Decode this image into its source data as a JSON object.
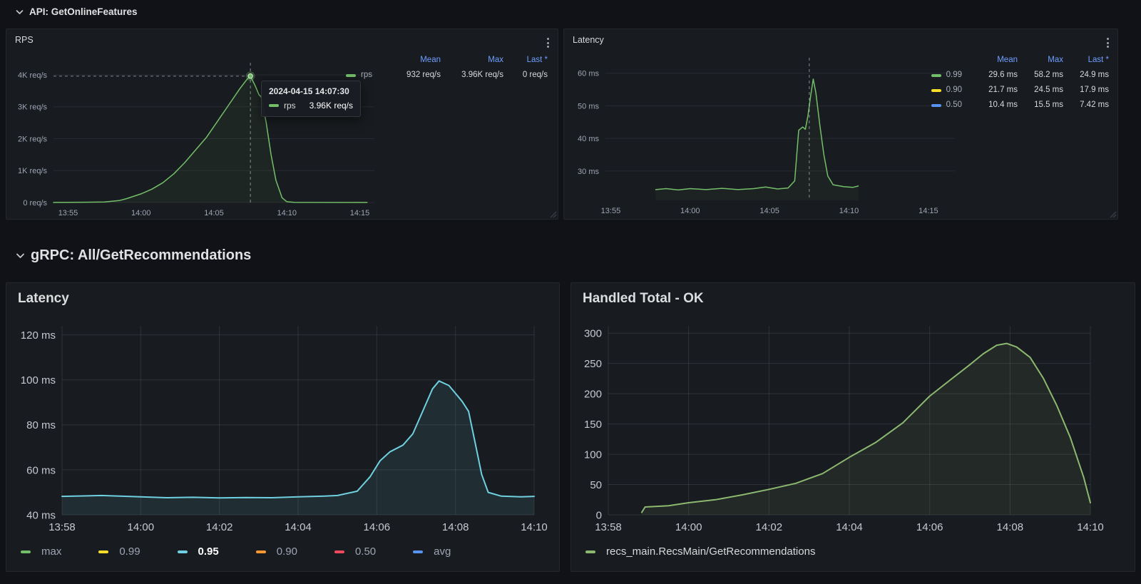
{
  "colors": {
    "page_bg": "#111217",
    "panel_bg": "#181B1F",
    "panel_border": "#25272D",
    "legend_header_blue": "#6E9FFF",
    "green": "#73BF69",
    "yellow": "#FADE2A",
    "blue": "#5794F2",
    "light_blue": "#6ED0E0",
    "orange": "#FF9830",
    "red": "#F2495C",
    "olive_green": "#8CB870"
  },
  "sections": [
    {
      "title": "API: GetOnlineFeatures"
    },
    {
      "title": "gRPC: All/GetRecommendations"
    }
  ],
  "panels": {
    "rps": {
      "title": "RPS",
      "legend_headers": [
        "Mean",
        "Max",
        "Last *"
      ],
      "legend_rows": [
        {
          "name": "rps",
          "mean": "932 req/s",
          "max": "3.96K req/s",
          "last": "0 req/s"
        }
      ],
      "tooltip": {
        "timestamp": "2024-04-15 14:07:30",
        "series": "rps",
        "value": "3.96K req/s"
      }
    },
    "latency_api": {
      "title": "Latency",
      "legend_headers": [
        "Mean",
        "Max",
        "Last *"
      ],
      "legend_rows": [
        {
          "name": "0.99",
          "mean": "29.6 ms",
          "max": "58.2 ms",
          "last": "24.9 ms"
        },
        {
          "name": "0.90",
          "mean": "21.7 ms",
          "max": "24.5 ms",
          "last": "17.9 ms"
        },
        {
          "name": "0.50",
          "mean": "10.4 ms",
          "max": "15.5 ms",
          "last": "7.42 ms"
        }
      ]
    },
    "latency_grpc": {
      "title": "Latency",
      "legend_items": [
        {
          "label": "max",
          "color": "#73BF69",
          "selected": false
        },
        {
          "label": "0.99",
          "color": "#FADE2A",
          "selected": false
        },
        {
          "label": "0.95",
          "color": "#6ED0E0",
          "selected": true
        },
        {
          "label": "0.90",
          "color": "#FF9830",
          "selected": false
        },
        {
          "label": "0.50",
          "color": "#F2495C",
          "selected": false
        },
        {
          "label": "avg",
          "color": "#5794F2",
          "selected": false
        }
      ]
    },
    "handled_total": {
      "title": "Handled Total - OK",
      "legend_items": [
        {
          "label": "recs_main.RecsMain/GetRecommendations",
          "color": "#8CB870",
          "selected": false
        }
      ]
    }
  },
  "chart_data": [
    {
      "type": "line",
      "title": "RPS",
      "x_domain": [
        "13:54:00",
        "14:16:00"
      ],
      "x_ticks": [
        "13:55",
        "14:00",
        "14:05",
        "14:10",
        "14:15"
      ],
      "y_domain": [
        0,
        4200
      ],
      "y_ticks": [
        {
          "v": 0,
          "label": "0 req/s"
        },
        {
          "v": 1000,
          "label": "1K req/s"
        },
        {
          "v": 2000,
          "label": "2K req/s"
        },
        {
          "v": 3000,
          "label": "3K req/s"
        },
        {
          "v": 4000,
          "label": "4K req/s"
        }
      ],
      "v_grid": false,
      "crosshair": {
        "x": "14:07:30",
        "y": 3960,
        "marker": true
      },
      "series": [
        {
          "name": "rps",
          "color": "#73BF69",
          "width": 1.5,
          "fill": "rgba(115,191,105,0.07)",
          "points": [
            [
              "13:54:00",
              3
            ],
            [
              "13:56:00",
              8
            ],
            [
              "13:57:30",
              15
            ],
            [
              "13:58:30",
              60
            ],
            [
              "13:59:00",
              120
            ],
            [
              "14:00:00",
              270
            ],
            [
              "14:00:45",
              420
            ],
            [
              "14:01:30",
              620
            ],
            [
              "14:02:15",
              900
            ],
            [
              "14:03:00",
              1250
            ],
            [
              "14:03:45",
              1650
            ],
            [
              "14:04:30",
              2050
            ],
            [
              "14:05:15",
              2550
            ],
            [
              "14:06:00",
              3050
            ],
            [
              "14:06:45",
              3550
            ],
            [
              "14:07:15",
              3850
            ],
            [
              "14:07:30",
              3960
            ],
            [
              "14:07:50",
              3650
            ],
            [
              "14:08:05",
              3380
            ],
            [
              "14:08:15",
              3300
            ],
            [
              "14:08:35",
              2500
            ],
            [
              "14:08:55",
              1500
            ],
            [
              "14:09:15",
              700
            ],
            [
              "14:09:40",
              150
            ],
            [
              "14:10:00",
              25
            ],
            [
              "14:10:30",
              5
            ],
            [
              "14:15:30",
              2
            ]
          ]
        }
      ]
    },
    {
      "type": "line",
      "title": "Latency",
      "x_domain": [
        "13:54:40",
        "14:16:40"
      ],
      "x_ticks": [
        "13:55",
        "14:00",
        "14:05",
        "14:10",
        "14:15"
      ],
      "y_domain": [
        21,
        63
      ],
      "y_ticks": [
        {
          "v": 30,
          "label": "30 ms"
        },
        {
          "v": 40,
          "label": "40 ms"
        },
        {
          "v": 50,
          "label": "50 ms"
        },
        {
          "v": 60,
          "label": "60 ms"
        }
      ],
      "v_grid": false,
      "crosshair": {
        "x": "14:07:30"
      },
      "series": [
        {
          "name": "0.99",
          "color": "#73BF69",
          "width": 1.5,
          "fill": "rgba(115,191,105,0.05)",
          "points": [
            [
              "13:57:50",
              24.3
            ],
            [
              "13:58:30",
              24.6
            ],
            [
              "13:59:15",
              24.2
            ],
            [
              "14:00:00",
              24.6
            ],
            [
              "14:01:00",
              24.3
            ],
            [
              "14:02:00",
              24.7
            ],
            [
              "14:03:00",
              24.3
            ],
            [
              "14:04:00",
              24.6
            ],
            [
              "14:04:45",
              25.1
            ],
            [
              "14:05:30",
              24.5
            ],
            [
              "14:06:10",
              24.8
            ],
            [
              "14:06:35",
              27
            ],
            [
              "14:06:50",
              42.5
            ],
            [
              "14:07:05",
              43.5
            ],
            [
              "14:07:15",
              42.8
            ],
            [
              "14:07:25",
              47
            ],
            [
              "14:07:35",
              53
            ],
            [
              "14:07:45",
              58.2
            ],
            [
              "14:07:55",
              54
            ],
            [
              "14:08:10",
              44
            ],
            [
              "14:08:25",
              35
            ],
            [
              "14:08:40",
              28.5
            ],
            [
              "14:09:00",
              25.8
            ],
            [
              "14:09:40",
              25.2
            ],
            [
              "14:10:15",
              25.0
            ],
            [
              "14:10:35",
              25.4
            ]
          ]
        }
      ]
    },
    {
      "type": "line",
      "title": "Latency",
      "x_domain": [
        "13:58:00",
        "14:10:00"
      ],
      "x_ticks": [
        "13:58",
        "14:00",
        "14:02",
        "14:04",
        "14:06",
        "14:08",
        "14:10"
      ],
      "y_domain": [
        40,
        124
      ],
      "y_ticks": [
        {
          "v": 40,
          "label": "40 ms"
        },
        {
          "v": 60,
          "label": "60 ms"
        },
        {
          "v": 80,
          "label": "80 ms"
        },
        {
          "v": 100,
          "label": "100 ms"
        },
        {
          "v": 120,
          "label": "120 ms"
        }
      ],
      "v_grid": true,
      "series": [
        {
          "name": "0.95",
          "color": "#6ED0E0",
          "width": 2,
          "fill": "rgba(110,208,224,0.10)",
          "points": [
            [
              "13:58:00",
              48.2
            ],
            [
              "13:59:00",
              48.6
            ],
            [
              "14:00:00",
              48.0
            ],
            [
              "14:00:40",
              47.6
            ],
            [
              "14:01:20",
              47.8
            ],
            [
              "14:02:00",
              47.5
            ],
            [
              "14:02:40",
              47.7
            ],
            [
              "14:03:20",
              47.6
            ],
            [
              "14:04:00",
              48.0
            ],
            [
              "14:04:40",
              48.3
            ],
            [
              "14:05:00",
              48.6
            ],
            [
              "14:05:30",
              50.5
            ],
            [
              "14:05:50",
              57
            ],
            [
              "14:06:05",
              64
            ],
            [
              "14:06:20",
              68
            ],
            [
              "14:06:40",
              71
            ],
            [
              "14:06:55",
              76
            ],
            [
              "14:07:10",
              86
            ],
            [
              "14:07:25",
              96
            ],
            [
              "14:07:35",
              99.5
            ],
            [
              "14:07:50",
              97.5
            ],
            [
              "14:08:00",
              94
            ],
            [
              "14:08:10",
              90.5
            ],
            [
              "14:08:20",
              86
            ],
            [
              "14:08:30",
              72
            ],
            [
              "14:08:40",
              58
            ],
            [
              "14:08:50",
              50
            ],
            [
              "14:09:10",
              48.3
            ],
            [
              "14:09:40",
              48.0
            ],
            [
              "14:10:00",
              48.2
            ]
          ]
        }
      ]
    },
    {
      "type": "line",
      "title": "Handled Total - OK",
      "x_domain": [
        "13:58:00",
        "14:10:00"
      ],
      "x_ticks": [
        "13:58",
        "14:00",
        "14:02",
        "14:04",
        "14:06",
        "14:08",
        "14:10"
      ],
      "y_domain": [
        0,
        312
      ],
      "y_ticks": [
        {
          "v": 0,
          "label": "0"
        },
        {
          "v": 50,
          "label": "50"
        },
        {
          "v": 100,
          "label": "100"
        },
        {
          "v": 150,
          "label": "150"
        },
        {
          "v": 200,
          "label": "200"
        },
        {
          "v": 250,
          "label": "250"
        },
        {
          "v": 300,
          "label": "300"
        }
      ],
      "v_grid": true,
      "series": [
        {
          "name": "recs_main.RecsMain/GetRecommendations",
          "color": "#8CB870",
          "width": 2,
          "fill": "rgba(140,184,112,0.09)",
          "points": [
            [
              "13:58:50",
              4
            ],
            [
              "13:58:55",
              13
            ],
            [
              "13:59:30",
              15
            ],
            [
              "14:00:00",
              20
            ],
            [
              "14:00:40",
              25
            ],
            [
              "14:01:20",
              33
            ],
            [
              "14:02:00",
              42
            ],
            [
              "14:02:40",
              52
            ],
            [
              "14:03:20",
              68
            ],
            [
              "14:04:00",
              95
            ],
            [
              "14:04:40",
              120
            ],
            [
              "14:05:20",
              152
            ],
            [
              "14:06:00",
              196
            ],
            [
              "14:06:30",
              222
            ],
            [
              "14:07:00",
              248
            ],
            [
              "14:07:20",
              266
            ],
            [
              "14:07:40",
              280
            ],
            [
              "14:07:55",
              283
            ],
            [
              "14:08:10",
              277
            ],
            [
              "14:08:30",
              260
            ],
            [
              "14:08:50",
              225
            ],
            [
              "14:09:10",
              180
            ],
            [
              "14:09:30",
              128
            ],
            [
              "14:09:50",
              62
            ],
            [
              "14:10:00",
              20
            ]
          ]
        }
      ]
    }
  ]
}
